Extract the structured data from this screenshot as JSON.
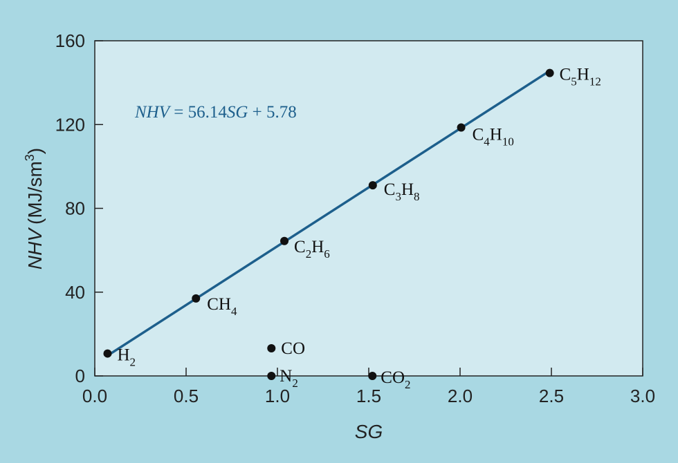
{
  "chart_data": {
    "type": "scatter",
    "xlabel": "SG",
    "ylabel_main": "NHV",
    "ylabel_unit_prefix": "(MJ/sm",
    "ylabel_unit_sup": "3",
    "ylabel_unit_suffix": ")",
    "xlim": [
      0.0,
      3.0
    ],
    "ylim": [
      0,
      160
    ],
    "xticks": [
      0.0,
      0.5,
      1.0,
      1.5,
      2.0,
      2.5,
      3.0
    ],
    "xtick_labels": [
      "0.0",
      "0.5",
      "1.0",
      "1.5",
      "2.0",
      "2.5",
      "3.0"
    ],
    "yticks": [
      0,
      40,
      80,
      120,
      160
    ],
    "ytick_labels": [
      "0",
      "40",
      "80",
      "120",
      "160"
    ],
    "grid": false,
    "points": [
      {
        "id": "h2",
        "x": 0.07,
        "y": 10.7,
        "label": {
          "base": "H",
          "sub": "2",
          "base2": "",
          "sub2": ""
        }
      },
      {
        "id": "ch4",
        "x": 0.554,
        "y": 37.0,
        "label": {
          "base": "CH",
          "sub": "4",
          "base2": "",
          "sub2": ""
        }
      },
      {
        "id": "co",
        "x": 0.967,
        "y": 13.2,
        "label": {
          "base": "CO",
          "sub": "",
          "base2": "",
          "sub2": ""
        }
      },
      {
        "id": "n2",
        "x": 0.967,
        "y": 0,
        "label": {
          "base": "N",
          "sub": "2",
          "base2": "",
          "sub2": ""
        }
      },
      {
        "id": "c2h6",
        "x": 1.038,
        "y": 64.4,
        "label": {
          "base": "C",
          "sub": "2",
          "base2": "H",
          "sub2": "6"
        }
      },
      {
        "id": "co2",
        "x": 1.52,
        "y": 0,
        "label": {
          "base": "CO",
          "sub": "2",
          "base2": "",
          "sub2": ""
        }
      },
      {
        "id": "c3h8",
        "x": 1.522,
        "y": 91.0,
        "label": {
          "base": "C",
          "sub": "3",
          "base2": "H",
          "sub2": "8"
        }
      },
      {
        "id": "c4h10",
        "x": 2.006,
        "y": 118.6,
        "label": {
          "base": "C",
          "sub": "4",
          "base2": "H",
          "sub2": "10"
        }
      },
      {
        "id": "c5h12",
        "x": 2.491,
        "y": 144.6,
        "label": {
          "base": "C",
          "sub": "5",
          "base2": "H",
          "sub2": "12"
        }
      }
    ],
    "fit_line": {
      "slope": 56.14,
      "intercept": 5.78,
      "x_start": 0.07,
      "x_end": 2.491
    },
    "equation": {
      "lhs": "NHV",
      "mid": " = 56.14",
      "var": "SG",
      "rhs": " + 5.78"
    },
    "colors": {
      "background": "#a9d8e3",
      "plot_area": "#d2eaf0",
      "line": "#1d5f8c",
      "equation": "#1d5f8c",
      "points": "#111111",
      "axis": "#222222"
    }
  }
}
